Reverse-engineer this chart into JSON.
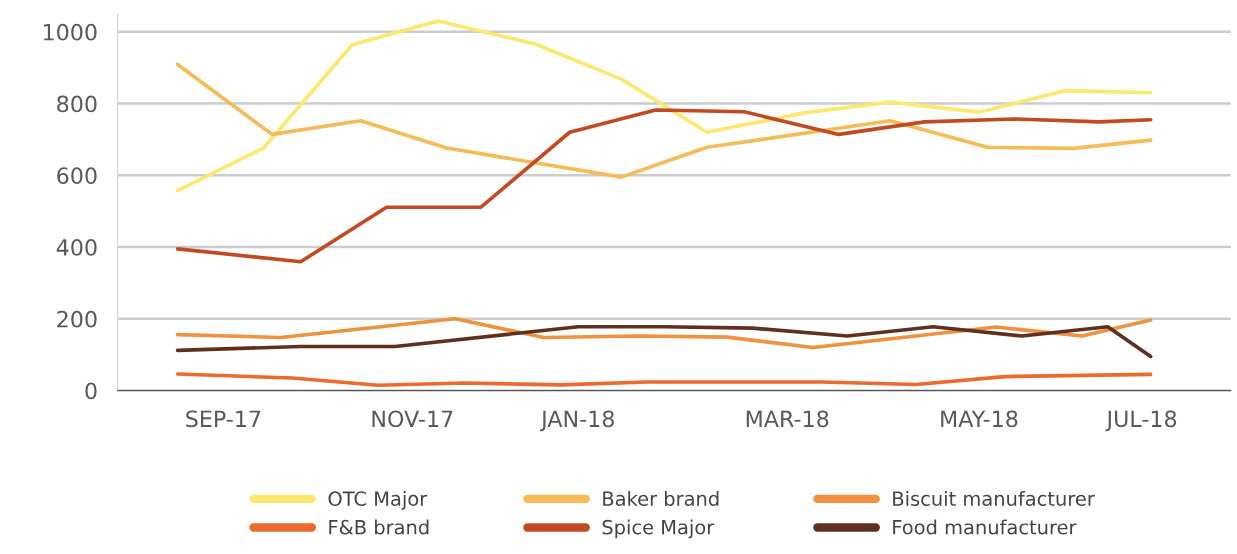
{
  "chart_data": {
    "type": "line",
    "xlim": [
      "2017-07-26",
      "2018-08-19"
    ],
    "ylim": [
      0,
      1050
    ],
    "yticks": [
      0,
      200,
      400,
      600,
      800,
      1000
    ],
    "xticks": [
      {
        "value": "2017-09-01",
        "label": "SEP-17"
      },
      {
        "value": "2017-11-06",
        "label": "NOV-17"
      },
      {
        "value": "2018-01-03",
        "label": "JAN-18"
      },
      {
        "value": "2018-03-17",
        "label": "MAR-18"
      },
      {
        "value": "2018-05-23",
        "label": "MAY-18"
      },
      {
        "value": "2018-07-19",
        "label": "JUL-18"
      }
    ],
    "grid": "y",
    "legend": "bottom",
    "line_style": "solid",
    "marker": "none",
    "series": [
      {
        "name": "OTC Major",
        "color": "#fce86e",
        "x": [
          "2017-08-16",
          "2017-09-15",
          "2017-10-16",
          "2017-11-15",
          "2017-12-19",
          "2018-01-18",
          "2018-02-17",
          "2018-03-23",
          "2018-04-22",
          "2018-05-23",
          "2018-06-22",
          "2018-07-22"
        ],
        "values": [
          557,
          676,
          964,
          1030,
          966,
          868,
          720,
          774,
          804,
          776,
          836,
          830
        ]
      },
      {
        "name": "Baker brand",
        "color": "#f5bb55",
        "x": [
          "2017-08-16",
          "2017-09-18",
          "2017-10-19",
          "2017-11-18",
          "2018-01-18",
          "2018-02-17",
          "2018-04-22",
          "2018-05-26",
          "2018-06-25",
          "2018-07-22"
        ],
        "values": [
          909,
          714,
          752,
          676,
          595,
          678,
          752,
          678,
          675,
          698
        ]
      },
      {
        "name": "Biscuit manufacturer",
        "color": "#f0913f",
        "x": [
          "2017-08-16",
          "2017-09-21",
          "2017-11-21",
          "2017-12-22",
          "2018-01-24",
          "2018-02-24",
          "2018-03-26",
          "2018-05-29",
          "2018-06-28",
          "2018-07-22"
        ],
        "values": [
          156,
          148,
          200,
          148,
          152,
          149,
          120,
          177,
          152,
          197
        ]
      },
      {
        "name": "F&B brand",
        "color": "#eb6a2e",
        "x": [
          "2017-08-16",
          "2017-09-25",
          "2017-10-25",
          "2017-11-24",
          "2017-12-28",
          "2018-01-27",
          "2018-03-29",
          "2018-05-01",
          "2018-06-01",
          "2018-07-22"
        ],
        "values": [
          46,
          35,
          15,
          21,
          16,
          24,
          24,
          17,
          39,
          45
        ]
      },
      {
        "name": "Spice Major",
        "color": "#c24a22",
        "x": [
          "2017-08-16",
          "2017-09-28",
          "2017-10-28",
          "2017-11-30",
          "2017-12-31",
          "2018-01-30",
          "2018-03-02",
          "2018-04-04",
          "2018-05-04",
          "2018-06-04",
          "2018-07-04",
          "2018-07-22"
        ],
        "values": [
          395,
          359,
          511,
          511,
          720,
          782,
          777,
          714,
          749,
          757,
          749,
          755
        ]
      },
      {
        "name": "Food manufacturer",
        "color": "#5e3020",
        "x": [
          "2017-08-16",
          "2017-09-28",
          "2017-10-31",
          "2018-01-03",
          "2018-02-02",
          "2018-03-05",
          "2018-04-07",
          "2018-05-07",
          "2018-06-07",
          "2018-07-07",
          "2018-07-22"
        ],
        "values": [
          112,
          123,
          123,
          178,
          178,
          174,
          152,
          178,
          152,
          178,
          95
        ]
      }
    ]
  }
}
